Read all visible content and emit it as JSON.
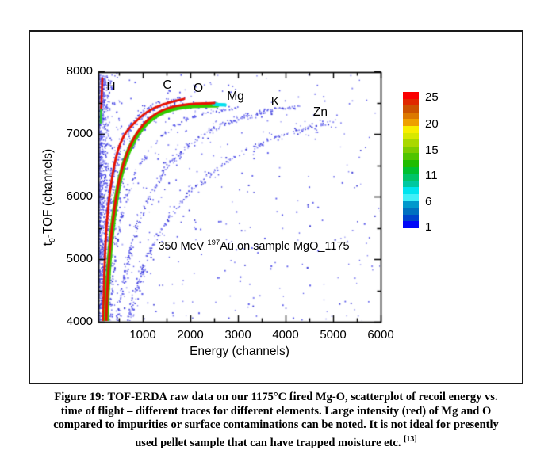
{
  "figure": {
    "caption": {
      "line1": "Figure 19: TOF-ERDA raw data on our 1175°C fired Mg-O, scatterplot of recoil energy vs.",
      "line2": "time of flight – different traces for different elements. Large intensity (red) of Mg and O",
      "line3": "compared to impurities or surface contaminations can be noted. It is not ideal for presently",
      "line4_main": "used pellet sample that can have trapped moisture etc. ",
      "line4_sup": "[13]"
    }
  },
  "chart_data": {
    "type": "scatter",
    "xlabel": "Energy (channels)",
    "ylabel_pre": "t",
    "ylabel_sub": "0",
    "ylabel_post": "-TOF (channels)",
    "xlim": [
      0,
      6000
    ],
    "ylim": [
      4000,
      8000
    ],
    "x_major_ticks": [
      1000,
      2000,
      3000,
      4000,
      5000,
      6000
    ],
    "x_minor_ticks": [
      500,
      1500,
      2500,
      3500,
      4500,
      5500
    ],
    "y_major_ticks": [
      4000,
      5000,
      6000,
      7000,
      8000
    ],
    "y_minor_ticks": [
      4500,
      5500,
      6500,
      7500
    ],
    "grid": false,
    "annotation": {
      "pre": "350 MeV ",
      "sup": "197",
      "post": "Au on sample MgO_1175",
      "energy": 3333,
      "tof": 5215
    },
    "element_labels": [
      {
        "label": "H",
        "energy": 333,
        "tof": 7747
      },
      {
        "label": "C",
        "energy": 1517,
        "tof": 7772
      },
      {
        "label": "O",
        "energy": 2167,
        "tof": 7722
      },
      {
        "label": "Mg",
        "energy": 2950,
        "tof": 7595
      },
      {
        "label": "K",
        "energy": 3783,
        "tof": 7506
      },
      {
        "label": "Zn",
        "energy": 4733,
        "tof": 7342
      }
    ],
    "traces": [
      {
        "name": "H",
        "intensity": "high",
        "guide": [
          [
            150,
            7890
          ],
          [
            146,
            7810
          ],
          [
            140,
            7680
          ],
          [
            133,
            7530
          ],
          [
            126,
            7390
          ],
          [
            120,
            7260
          ],
          [
            116,
            7180
          ]
        ],
        "noise": [
          [
            90,
            2.2
          ]
        ],
        "strokes": [
          {
            "color": "#e81100",
            "width": 2.6,
            "dy": 0,
            "points": [
              [
                150,
                7890
              ],
              [
                146,
                7810
              ],
              [
                140,
                7680
              ],
              [
                133,
                7530
              ],
              [
                126,
                7390
              ]
            ]
          },
          {
            "color": "#2cc832",
            "width": 2.6,
            "dy": 0,
            "points": [
              [
                126,
                7390
              ],
              [
                120,
                7260
              ],
              [
                116,
                7180
              ]
            ]
          }
        ]
      },
      {
        "name": "C",
        "intensity": "low",
        "guide": [
          [
            140,
            4000
          ],
          [
            158,
            4600
          ],
          [
            190,
            5200
          ],
          [
            245,
            5780
          ],
          [
            330,
            6300
          ],
          [
            440,
            6690
          ],
          [
            580,
            6970
          ],
          [
            770,
            7210
          ],
          [
            1010,
            7390
          ],
          [
            1290,
            7510
          ],
          [
            1520,
            7570
          ]
        ],
        "noise": [
          [
            145,
            1.4
          ]
        ],
        "strokes": []
      },
      {
        "name": "O",
        "intensity": "high",
        "guide": [
          [
            167,
            4000
          ],
          [
            185,
            4600
          ],
          [
            215,
            5200
          ],
          [
            265,
            5760
          ],
          [
            350,
            6280
          ],
          [
            465,
            6700
          ],
          [
            620,
            6990
          ],
          [
            830,
            7180
          ],
          [
            1090,
            7350
          ],
          [
            1420,
            7470
          ],
          [
            1870,
            7560
          ]
        ],
        "noise": [
          [
            240,
            2.6
          ],
          [
            70,
            6.0
          ]
        ],
        "strokes": [
          {
            "color": "#e81100",
            "width": 2.8,
            "dy": 0,
            "points": [
              [
                167,
                4000
              ],
              [
                185,
                4600
              ],
              [
                215,
                5200
              ],
              [
                265,
                5760
              ],
              [
                350,
                6280
              ],
              [
                465,
                6700
              ],
              [
                620,
                6990
              ],
              [
                830,
                7180
              ],
              [
                1090,
                7350
              ],
              [
                1420,
                7470
              ],
              [
                1870,
                7560
              ]
            ]
          }
        ]
      },
      {
        "name": "Mg",
        "intensity": "high",
        "guide": [
          [
            233,
            4000
          ],
          [
            262,
            4580
          ],
          [
            315,
            5170
          ],
          [
            390,
            5700
          ],
          [
            495,
            6200
          ],
          [
            635,
            6600
          ],
          [
            820,
            6920
          ],
          [
            1060,
            7170
          ],
          [
            1360,
            7340
          ],
          [
            1720,
            7430
          ],
          [
            2100,
            7465
          ],
          [
            2500,
            7475
          ]
        ],
        "noise": [
          [
            210,
            3.0
          ],
          [
            60,
            7.0
          ]
        ],
        "strokes": [
          {
            "color": "#33cc00",
            "width": 6.2,
            "dy": 1.0,
            "points": [
              [
                233,
                4000
              ],
              [
                262,
                4580
              ],
              [
                315,
                5170
              ],
              [
                390,
                5700
              ],
              [
                495,
                6200
              ],
              [
                635,
                6600
              ],
              [
                820,
                6920
              ],
              [
                1060,
                7170
              ],
              [
                1360,
                7340
              ],
              [
                1720,
                7430
              ],
              [
                2100,
                7465
              ],
              [
                2560,
                7472
              ]
            ]
          },
          {
            "color": "#00e0ee",
            "width": 4.2,
            "dy": 0.6,
            "points": [
              [
                2480,
                7480
              ],
              [
                2730,
                7470
              ]
            ]
          },
          {
            "color": "#e81100",
            "width": 3.0,
            "dy": -1.4,
            "points": [
              [
                233,
                4000
              ],
              [
                262,
                4580
              ],
              [
                315,
                5170
              ],
              [
                390,
                5700
              ],
              [
                495,
                6200
              ],
              [
                635,
                6600
              ],
              [
                820,
                6920
              ],
              [
                1060,
                7170
              ],
              [
                1360,
                7340
              ],
              [
                1720,
                7430
              ],
              [
                2100,
                7465
              ],
              [
                2500,
                7475
              ]
            ]
          }
        ]
      },
      {
        "name": "impurity",
        "intensity": "low",
        "guide": [
          [
            290,
            4000
          ],
          [
            335,
            4520
          ],
          [
            405,
            5060
          ],
          [
            510,
            5580
          ],
          [
            660,
            6040
          ],
          [
            860,
            6430
          ],
          [
            1130,
            6760
          ],
          [
            1470,
            7030
          ],
          [
            1880,
            7230
          ],
          [
            2360,
            7360
          ],
          [
            2950,
            7420
          ]
        ],
        "noise": [
          [
            150,
            1.7
          ]
        ],
        "strokes": []
      },
      {
        "name": "K",
        "intensity": "low",
        "guide": [
          [
            470,
            4000
          ],
          [
            560,
            4520
          ],
          [
            690,
            5040
          ],
          [
            870,
            5540
          ],
          [
            1120,
            6010
          ],
          [
            1460,
            6440
          ],
          [
            1900,
            6800
          ],
          [
            2440,
            7080
          ],
          [
            3060,
            7280
          ],
          [
            3700,
            7400
          ],
          [
            4300,
            7450
          ]
        ],
        "noise": [
          [
            250,
            2.0
          ],
          [
            80,
            5.0
          ]
        ],
        "strokes": []
      },
      {
        "name": "Zn",
        "intensity": "low",
        "guide": [
          [
            680,
            4000
          ],
          [
            810,
            4420
          ],
          [
            1000,
            4880
          ],
          [
            1260,
            5330
          ],
          [
            1600,
            5750
          ],
          [
            2040,
            6130
          ],
          [
            2580,
            6470
          ],
          [
            3220,
            6760
          ],
          [
            3900,
            6980
          ],
          [
            4560,
            7130
          ],
          [
            5120,
            7220
          ]
        ],
        "noise": [
          [
            210,
            2.6
          ],
          [
            70,
            6.0
          ]
        ],
        "strokes": []
      }
    ],
    "colorbar": {
      "colors_top_to_bottom": [
        "#fa0000",
        "#e02800",
        "#cc5200",
        "#dc7800",
        "#eea000",
        "#f8ee00",
        "#d8e800",
        "#aad800",
        "#7ecc00",
        "#50c400",
        "#20bc00",
        "#00c030",
        "#00c468",
        "#00c8a0",
        "#00e4ee",
        "#40f0f8",
        "#0098cc",
        "#0070c0",
        "#0044cc",
        "#0008f8"
      ],
      "ticks": [
        {
          "value": 25,
          "pos": 0.042
        },
        {
          "value": 20,
          "pos": 0.24
        },
        {
          "value": 15,
          "pos": 0.43
        },
        {
          "value": 11,
          "pos": 0.616
        },
        {
          "value": 6,
          "pos": 0.808
        },
        {
          "value": 1,
          "pos": 0.994
        }
      ]
    },
    "noise": {
      "palette": [
        "#5b5bea",
        "#8d8df2",
        "#3a3ad6",
        "#b0b0f6"
      ],
      "left_column_n": 650,
      "left_column_extra_n": 220,
      "field_n": 400
    }
  }
}
